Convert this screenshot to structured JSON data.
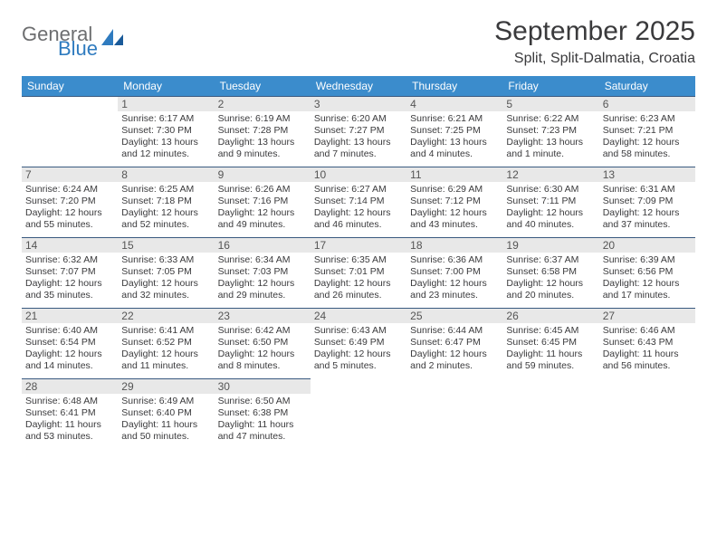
{
  "brand": {
    "general": "General",
    "blue": "Blue"
  },
  "colors": {
    "header_bg": "#3b8ccc",
    "header_fg": "#ffffff",
    "daynum_bg": "#e8e8e8",
    "daynum_fg": "#555555",
    "cell_border": "#3a5a80",
    "text": "#3a3a3c",
    "logo_gray": "#6d6e70",
    "logo_blue": "#2f7bbf"
  },
  "title": "September 2025",
  "location": "Split, Split-Dalmatia, Croatia",
  "days_of_week": [
    "Sunday",
    "Monday",
    "Tuesday",
    "Wednesday",
    "Thursday",
    "Friday",
    "Saturday"
  ],
  "leading_blanks": 1,
  "days": [
    {
      "n": "1",
      "sunrise": "Sunrise: 6:17 AM",
      "sunset": "Sunset: 7:30 PM",
      "day1": "Daylight: 13 hours",
      "day2": "and 12 minutes."
    },
    {
      "n": "2",
      "sunrise": "Sunrise: 6:19 AM",
      "sunset": "Sunset: 7:28 PM",
      "day1": "Daylight: 13 hours",
      "day2": "and 9 minutes."
    },
    {
      "n": "3",
      "sunrise": "Sunrise: 6:20 AM",
      "sunset": "Sunset: 7:27 PM",
      "day1": "Daylight: 13 hours",
      "day2": "and 7 minutes."
    },
    {
      "n": "4",
      "sunrise": "Sunrise: 6:21 AM",
      "sunset": "Sunset: 7:25 PM",
      "day1": "Daylight: 13 hours",
      "day2": "and 4 minutes."
    },
    {
      "n": "5",
      "sunrise": "Sunrise: 6:22 AM",
      "sunset": "Sunset: 7:23 PM",
      "day1": "Daylight: 13 hours",
      "day2": "and 1 minute."
    },
    {
      "n": "6",
      "sunrise": "Sunrise: 6:23 AM",
      "sunset": "Sunset: 7:21 PM",
      "day1": "Daylight: 12 hours",
      "day2": "and 58 minutes."
    },
    {
      "n": "7",
      "sunrise": "Sunrise: 6:24 AM",
      "sunset": "Sunset: 7:20 PM",
      "day1": "Daylight: 12 hours",
      "day2": "and 55 minutes."
    },
    {
      "n": "8",
      "sunrise": "Sunrise: 6:25 AM",
      "sunset": "Sunset: 7:18 PM",
      "day1": "Daylight: 12 hours",
      "day2": "and 52 minutes."
    },
    {
      "n": "9",
      "sunrise": "Sunrise: 6:26 AM",
      "sunset": "Sunset: 7:16 PM",
      "day1": "Daylight: 12 hours",
      "day2": "and 49 minutes."
    },
    {
      "n": "10",
      "sunrise": "Sunrise: 6:27 AM",
      "sunset": "Sunset: 7:14 PM",
      "day1": "Daylight: 12 hours",
      "day2": "and 46 minutes."
    },
    {
      "n": "11",
      "sunrise": "Sunrise: 6:29 AM",
      "sunset": "Sunset: 7:12 PM",
      "day1": "Daylight: 12 hours",
      "day2": "and 43 minutes."
    },
    {
      "n": "12",
      "sunrise": "Sunrise: 6:30 AM",
      "sunset": "Sunset: 7:11 PM",
      "day1": "Daylight: 12 hours",
      "day2": "and 40 minutes."
    },
    {
      "n": "13",
      "sunrise": "Sunrise: 6:31 AM",
      "sunset": "Sunset: 7:09 PM",
      "day1": "Daylight: 12 hours",
      "day2": "and 37 minutes."
    },
    {
      "n": "14",
      "sunrise": "Sunrise: 6:32 AM",
      "sunset": "Sunset: 7:07 PM",
      "day1": "Daylight: 12 hours",
      "day2": "and 35 minutes."
    },
    {
      "n": "15",
      "sunrise": "Sunrise: 6:33 AM",
      "sunset": "Sunset: 7:05 PM",
      "day1": "Daylight: 12 hours",
      "day2": "and 32 minutes."
    },
    {
      "n": "16",
      "sunrise": "Sunrise: 6:34 AM",
      "sunset": "Sunset: 7:03 PM",
      "day1": "Daylight: 12 hours",
      "day2": "and 29 minutes."
    },
    {
      "n": "17",
      "sunrise": "Sunrise: 6:35 AM",
      "sunset": "Sunset: 7:01 PM",
      "day1": "Daylight: 12 hours",
      "day2": "and 26 minutes."
    },
    {
      "n": "18",
      "sunrise": "Sunrise: 6:36 AM",
      "sunset": "Sunset: 7:00 PM",
      "day1": "Daylight: 12 hours",
      "day2": "and 23 minutes."
    },
    {
      "n": "19",
      "sunrise": "Sunrise: 6:37 AM",
      "sunset": "Sunset: 6:58 PM",
      "day1": "Daylight: 12 hours",
      "day2": "and 20 minutes."
    },
    {
      "n": "20",
      "sunrise": "Sunrise: 6:39 AM",
      "sunset": "Sunset: 6:56 PM",
      "day1": "Daylight: 12 hours",
      "day2": "and 17 minutes."
    },
    {
      "n": "21",
      "sunrise": "Sunrise: 6:40 AM",
      "sunset": "Sunset: 6:54 PM",
      "day1": "Daylight: 12 hours",
      "day2": "and 14 minutes."
    },
    {
      "n": "22",
      "sunrise": "Sunrise: 6:41 AM",
      "sunset": "Sunset: 6:52 PM",
      "day1": "Daylight: 12 hours",
      "day2": "and 11 minutes."
    },
    {
      "n": "23",
      "sunrise": "Sunrise: 6:42 AM",
      "sunset": "Sunset: 6:50 PM",
      "day1": "Daylight: 12 hours",
      "day2": "and 8 minutes."
    },
    {
      "n": "24",
      "sunrise": "Sunrise: 6:43 AM",
      "sunset": "Sunset: 6:49 PM",
      "day1": "Daylight: 12 hours",
      "day2": "and 5 minutes."
    },
    {
      "n": "25",
      "sunrise": "Sunrise: 6:44 AM",
      "sunset": "Sunset: 6:47 PM",
      "day1": "Daylight: 12 hours",
      "day2": "and 2 minutes."
    },
    {
      "n": "26",
      "sunrise": "Sunrise: 6:45 AM",
      "sunset": "Sunset: 6:45 PM",
      "day1": "Daylight: 11 hours",
      "day2": "and 59 minutes."
    },
    {
      "n": "27",
      "sunrise": "Sunrise: 6:46 AM",
      "sunset": "Sunset: 6:43 PM",
      "day1": "Daylight: 11 hours",
      "day2": "and 56 minutes."
    },
    {
      "n": "28",
      "sunrise": "Sunrise: 6:48 AM",
      "sunset": "Sunset: 6:41 PM",
      "day1": "Daylight: 11 hours",
      "day2": "and 53 minutes."
    },
    {
      "n": "29",
      "sunrise": "Sunrise: 6:49 AM",
      "sunset": "Sunset: 6:40 PM",
      "day1": "Daylight: 11 hours",
      "day2": "and 50 minutes."
    },
    {
      "n": "30",
      "sunrise": "Sunrise: 6:50 AM",
      "sunset": "Sunset: 6:38 PM",
      "day1": "Daylight: 11 hours",
      "day2": "and 47 minutes."
    }
  ]
}
